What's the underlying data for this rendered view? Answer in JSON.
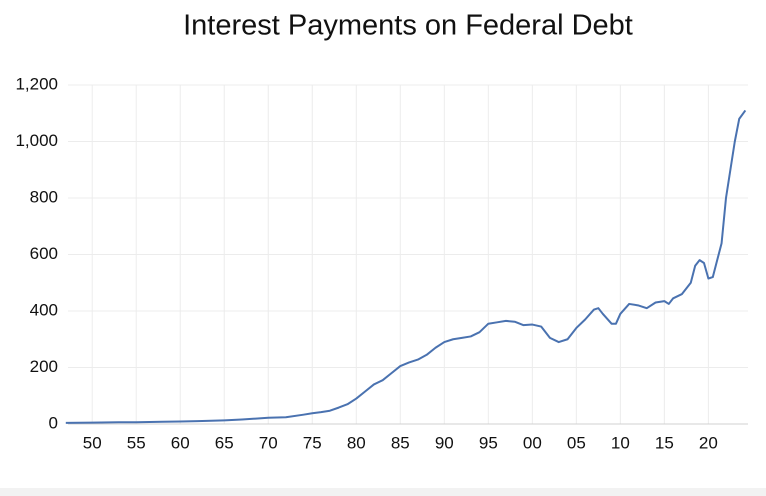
{
  "chart_data": {
    "type": "line",
    "title": "Interest Payments on Federal Debt",
    "x": [
      1947,
      1950,
      1953,
      1955,
      1958,
      1960,
      1962,
      1965,
      1967,
      1970,
      1972,
      1974,
      1975,
      1976,
      1977,
      1978,
      1979,
      1980,
      1981,
      1982,
      1983,
      1984,
      1985,
      1986,
      1987,
      1988,
      1989,
      1990,
      1991,
      1992,
      1993,
      1994,
      1995,
      1996,
      1997,
      1998,
      1999,
      2000,
      2001,
      2002,
      2003,
      2004,
      2005,
      2006,
      2007,
      2007.5,
      2008,
      2009,
      2009.5,
      2010,
      2011,
      2012,
      2013,
      2014,
      2015,
      2015.5,
      2016,
      2017,
      2018,
      2018.5,
      2019,
      2019.5,
      2020,
      2020.5,
      2021,
      2021.5,
      2022,
      2022.5,
      2023,
      2023.5,
      2024.2
    ],
    "series": [
      {
        "name": "Interest Payments",
        "color": "#4a72b0",
        "values": [
          4,
          5,
          6,
          6,
          8,
          9,
          10,
          13,
          16,
          22,
          24,
          33,
          38,
          42,
          47,
          58,
          70,
          90,
          115,
          140,
          155,
          180,
          205,
          218,
          228,
          245,
          270,
          290,
          300,
          305,
          310,
          325,
          355,
          360,
          365,
          362,
          350,
          352,
          345,
          305,
          290,
          300,
          340,
          370,
          405,
          410,
          390,
          355,
          355,
          390,
          425,
          420,
          410,
          430,
          435,
          425,
          445,
          460,
          500,
          560,
          580,
          570,
          515,
          520,
          580,
          640,
          800,
          900,
          1000,
          1080,
          1110
        ]
      }
    ],
    "xlim": [
      1947.25,
      2024.5
    ],
    "xticks": [
      {
        "value": 1950,
        "label": "50"
      },
      {
        "value": 1955,
        "label": "55"
      },
      {
        "value": 1960,
        "label": "60"
      },
      {
        "value": 1965,
        "label": "65"
      },
      {
        "value": 1970,
        "label": "70"
      },
      {
        "value": 1975,
        "label": "75"
      },
      {
        "value": 1980,
        "label": "80"
      },
      {
        "value": 1985,
        "label": "85"
      },
      {
        "value": 1990,
        "label": "90"
      },
      {
        "value": 1995,
        "label": "95"
      },
      {
        "value": 2000,
        "label": "00"
      },
      {
        "value": 2005,
        "label": "05"
      },
      {
        "value": 2010,
        "label": "10"
      },
      {
        "value": 2015,
        "label": "15"
      },
      {
        "value": 2020,
        "label": "20"
      }
    ],
    "ylim": [
      0,
      1200
    ],
    "yticks": [
      0,
      200,
      400,
      600,
      800,
      {
        "value": 1000,
        "label": "1,000"
      },
      {
        "value": 1200,
        "label": "1,200"
      }
    ],
    "grid": true
  }
}
